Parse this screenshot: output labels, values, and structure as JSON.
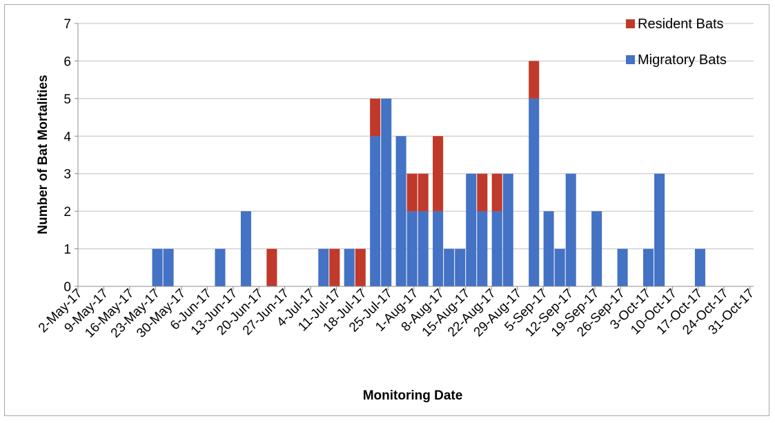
{
  "chart_data": {
    "type": "bar",
    "stacked": true,
    "title": "",
    "xlabel": "Monitoring Date",
    "ylabel": "Number of Bat Mortalities",
    "ylim": [
      0,
      7
    ],
    "yticks": [
      0,
      1,
      2,
      3,
      4,
      5,
      6,
      7
    ],
    "grid": true,
    "legend_position": "top-right",
    "x_tick_labels": [
      "2-May-17",
      "9-May-17",
      "16-May-17",
      "23-May-17",
      "30-May-17",
      "6-Jun-17",
      "13-Jun-17",
      "20-Jun-17",
      "27-Jun-17",
      "4-Jul-17",
      "11-Jul-17",
      "18-Jul-17",
      "25-Jul-17",
      "1-Aug-17",
      "8-Aug-17",
      "15-Aug-17",
      "22-Aug-17",
      "29-Aug-17",
      "5-Sep-17",
      "12-Sep-17",
      "19-Sep-17",
      "26-Sep-17",
      "3-Oct-17",
      "10-Oct-17",
      "17-Oct-17",
      "24-Oct-17",
      "31-Oct-17"
    ],
    "x_start_date": "2017-05-02",
    "x_end_date": "2017-10-31",
    "series": [
      {
        "name": "Migratory Bats",
        "color": "#4472c4",
        "points": [
          {
            "date": "2017-05-23",
            "value": 1
          },
          {
            "date": "2017-05-26",
            "value": 1
          },
          {
            "date": "2017-06-09",
            "value": 1
          },
          {
            "date": "2017-06-16",
            "value": 2
          },
          {
            "date": "2017-07-07",
            "value": 1
          },
          {
            "date": "2017-07-14",
            "value": 1
          },
          {
            "date": "2017-07-21",
            "value": 4
          },
          {
            "date": "2017-07-24",
            "value": 5
          },
          {
            "date": "2017-07-28",
            "value": 4
          },
          {
            "date": "2017-07-31",
            "value": 2
          },
          {
            "date": "2017-08-03",
            "value": 2
          },
          {
            "date": "2017-08-07",
            "value": 2
          },
          {
            "date": "2017-08-10",
            "value": 1
          },
          {
            "date": "2017-08-13",
            "value": 1
          },
          {
            "date": "2017-08-16",
            "value": 3
          },
          {
            "date": "2017-08-19",
            "value": 2
          },
          {
            "date": "2017-08-23",
            "value": 2
          },
          {
            "date": "2017-08-26",
            "value": 3
          },
          {
            "date": "2017-09-02",
            "value": 5
          },
          {
            "date": "2017-09-06",
            "value": 2
          },
          {
            "date": "2017-09-09",
            "value": 1
          },
          {
            "date": "2017-09-12",
            "value": 3
          },
          {
            "date": "2017-09-19",
            "value": 2
          },
          {
            "date": "2017-09-26",
            "value": 1
          },
          {
            "date": "2017-10-03",
            "value": 1
          },
          {
            "date": "2017-10-06",
            "value": 3
          },
          {
            "date": "2017-10-17",
            "value": 1
          }
        ]
      },
      {
        "name": "Resident Bats",
        "color": "#c0392b",
        "points": [
          {
            "date": "2017-06-23",
            "value": 1
          },
          {
            "date": "2017-07-10",
            "value": 1
          },
          {
            "date": "2017-07-17",
            "value": 1
          },
          {
            "date": "2017-07-21",
            "value": 1
          },
          {
            "date": "2017-07-31",
            "value": 1
          },
          {
            "date": "2017-08-03",
            "value": 1
          },
          {
            "date": "2017-08-07",
            "value": 2
          },
          {
            "date": "2017-08-19",
            "value": 1
          },
          {
            "date": "2017-08-23",
            "value": 1
          },
          {
            "date": "2017-09-02",
            "value": 1
          }
        ]
      }
    ],
    "legend_order": [
      "Resident Bats",
      "Migratory Bats"
    ]
  }
}
